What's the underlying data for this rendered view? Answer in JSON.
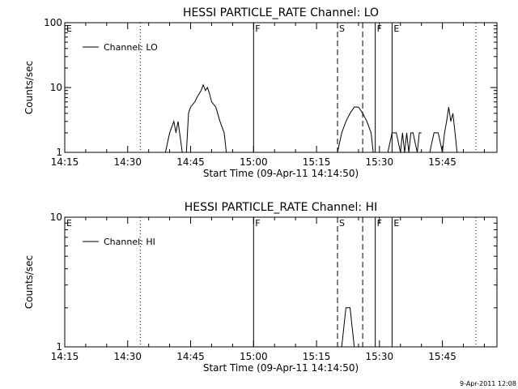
{
  "figure": {
    "timestamp": "9-Apr-2011 12:08",
    "background": "#ffffff",
    "ink": "#000000"
  },
  "chart_data": [
    {
      "type": "line",
      "title": "HESSI PARTICLE_RATE Channel: LO",
      "xlabel": "Start Time (09-Apr-11 14:14:50)",
      "ylabel": "Counts/sec",
      "y_scale": "log",
      "ylim": [
        1,
        100
      ],
      "yticks": [
        {
          "v": 1,
          "label": "1"
        },
        {
          "v": 10,
          "label": "10"
        },
        {
          "v": 100,
          "label": "100"
        }
      ],
      "xlim": [
        "14:15",
        "15:58"
      ],
      "xticks": [
        "14:15",
        "14:30",
        "14:45",
        "15:00",
        "15:15",
        "15:30",
        "15:45"
      ],
      "grid": false,
      "legend": {
        "position": "top-left",
        "entries": [
          "Channel: LO"
        ]
      },
      "series": [
        {
          "name": "Channel: LO",
          "segments": [
            [
              [
                "14:39",
                "1"
              ],
              [
                "14:40",
                "2"
              ],
              [
                "14:41",
                "3"
              ],
              [
                "14:41.5",
                "2"
              ],
              [
                "14:42",
                "3"
              ],
              [
                "14:43",
                "1"
              ]
            ],
            [
              [
                "14:44",
                "1"
              ],
              [
                "14:44.5",
                "4"
              ],
              [
                "14:45",
                "5"
              ],
              [
                "14:46",
                "6"
              ],
              [
                "14:46.5",
                "7"
              ],
              [
                "14:47",
                "8"
              ],
              [
                "14:47.5",
                "9"
              ],
              [
                "14:48",
                "11"
              ],
              [
                "14:48.5",
                "9"
              ],
              [
                "14:49",
                "10"
              ],
              [
                "14:49.5",
                "8"
              ],
              [
                "14:50",
                "6"
              ],
              [
                "14:51",
                "5"
              ],
              [
                "14:52",
                "3"
              ],
              [
                "14:53",
                "2"
              ],
              [
                "14:53.5",
                "1"
              ]
            ],
            [
              [
                "15:20",
                "1"
              ],
              [
                "15:21",
                "2"
              ],
              [
                "15:22",
                "3"
              ],
              [
                "15:23",
                "4"
              ],
              [
                "15:24",
                "5"
              ],
              [
                "15:25",
                "5"
              ],
              [
                "15:26",
                "4"
              ],
              [
                "15:27",
                "3"
              ],
              [
                "15:28",
                "2"
              ],
              [
                "15:28.5",
                "1"
              ]
            ],
            [
              [
                "15:32",
                "1"
              ],
              [
                "15:33",
                "2"
              ],
              [
                "15:34",
                "2"
              ],
              [
                "15:35",
                "1"
              ],
              [
                "15:35.5",
                "2"
              ],
              [
                "15:36",
                "1"
              ],
              [
                "15:36.5",
                "2"
              ],
              [
                "15:37",
                "1"
              ],
              [
                "15:37.5",
                "2"
              ],
              [
                "15:38",
                "2"
              ],
              [
                "15:39",
                "1"
              ],
              [
                "15:39.5",
                "2"
              ],
              [
                "15:40",
                "2"
              ]
            ],
            [
              [
                "15:42",
                "1"
              ],
              [
                "15:43",
                "2"
              ],
              [
                "15:44",
                "2"
              ],
              [
                "15:45",
                "1"
              ],
              [
                "15:45.5",
                "2"
              ],
              [
                "15:46",
                "3"
              ],
              [
                "15:46.5",
                "5"
              ],
              [
                "15:47",
                "3"
              ],
              [
                "15:47.5",
                "4"
              ],
              [
                "15:48",
                "2"
              ],
              [
                "15:48.5",
                "1"
              ]
            ]
          ]
        }
      ],
      "markers": [
        {
          "t": "14:15",
          "label": "E",
          "style": "none"
        },
        {
          "t": "14:33",
          "label": "",
          "style": "dotted"
        },
        {
          "t": "15:00",
          "label": "F",
          "style": "solid"
        },
        {
          "t": "15:20",
          "label": "S",
          "style": "dashed"
        },
        {
          "t": "15:26",
          "label": "",
          "style": "dashed"
        },
        {
          "t": "15:29",
          "label": "F",
          "style": "solid"
        },
        {
          "t": "15:33",
          "label": "E",
          "style": "solid"
        },
        {
          "t": "15:53",
          "label": "",
          "style": "dotted"
        }
      ]
    },
    {
      "type": "line",
      "title": "HESSI PARTICLE_RATE Channel: HI",
      "xlabel": "Start Time (09-Apr-11 14:14:50)",
      "ylabel": "Counts/sec",
      "y_scale": "log",
      "ylim": [
        1,
        10
      ],
      "yticks": [
        {
          "v": 1,
          "label": "1"
        },
        {
          "v": 10,
          "label": "10"
        }
      ],
      "xlim": [
        "14:15",
        "15:58"
      ],
      "xticks": [
        "14:15",
        "14:30",
        "14:45",
        "15:00",
        "15:15",
        "15:30",
        "15:45"
      ],
      "grid": false,
      "legend": {
        "position": "top-left",
        "entries": [
          "Channel: HI"
        ]
      },
      "series": [
        {
          "name": "Channel: HI",
          "segments": [
            [
              [
                "15:21",
                "1"
              ],
              [
                "15:22",
                "2"
              ],
              [
                "15:23",
                "2"
              ],
              [
                "15:24",
                "1"
              ]
            ]
          ]
        }
      ],
      "markers": [
        {
          "t": "14:15",
          "label": "E",
          "style": "none"
        },
        {
          "t": "14:33",
          "label": "",
          "style": "dotted"
        },
        {
          "t": "15:00",
          "label": "F",
          "style": "solid"
        },
        {
          "t": "15:20",
          "label": "S",
          "style": "dashed"
        },
        {
          "t": "15:26",
          "label": "",
          "style": "dashed"
        },
        {
          "t": "15:29",
          "label": "F",
          "style": "solid"
        },
        {
          "t": "15:33",
          "label": "E",
          "style": "solid"
        },
        {
          "t": "15:53",
          "label": "",
          "style": "dotted"
        }
      ]
    }
  ]
}
